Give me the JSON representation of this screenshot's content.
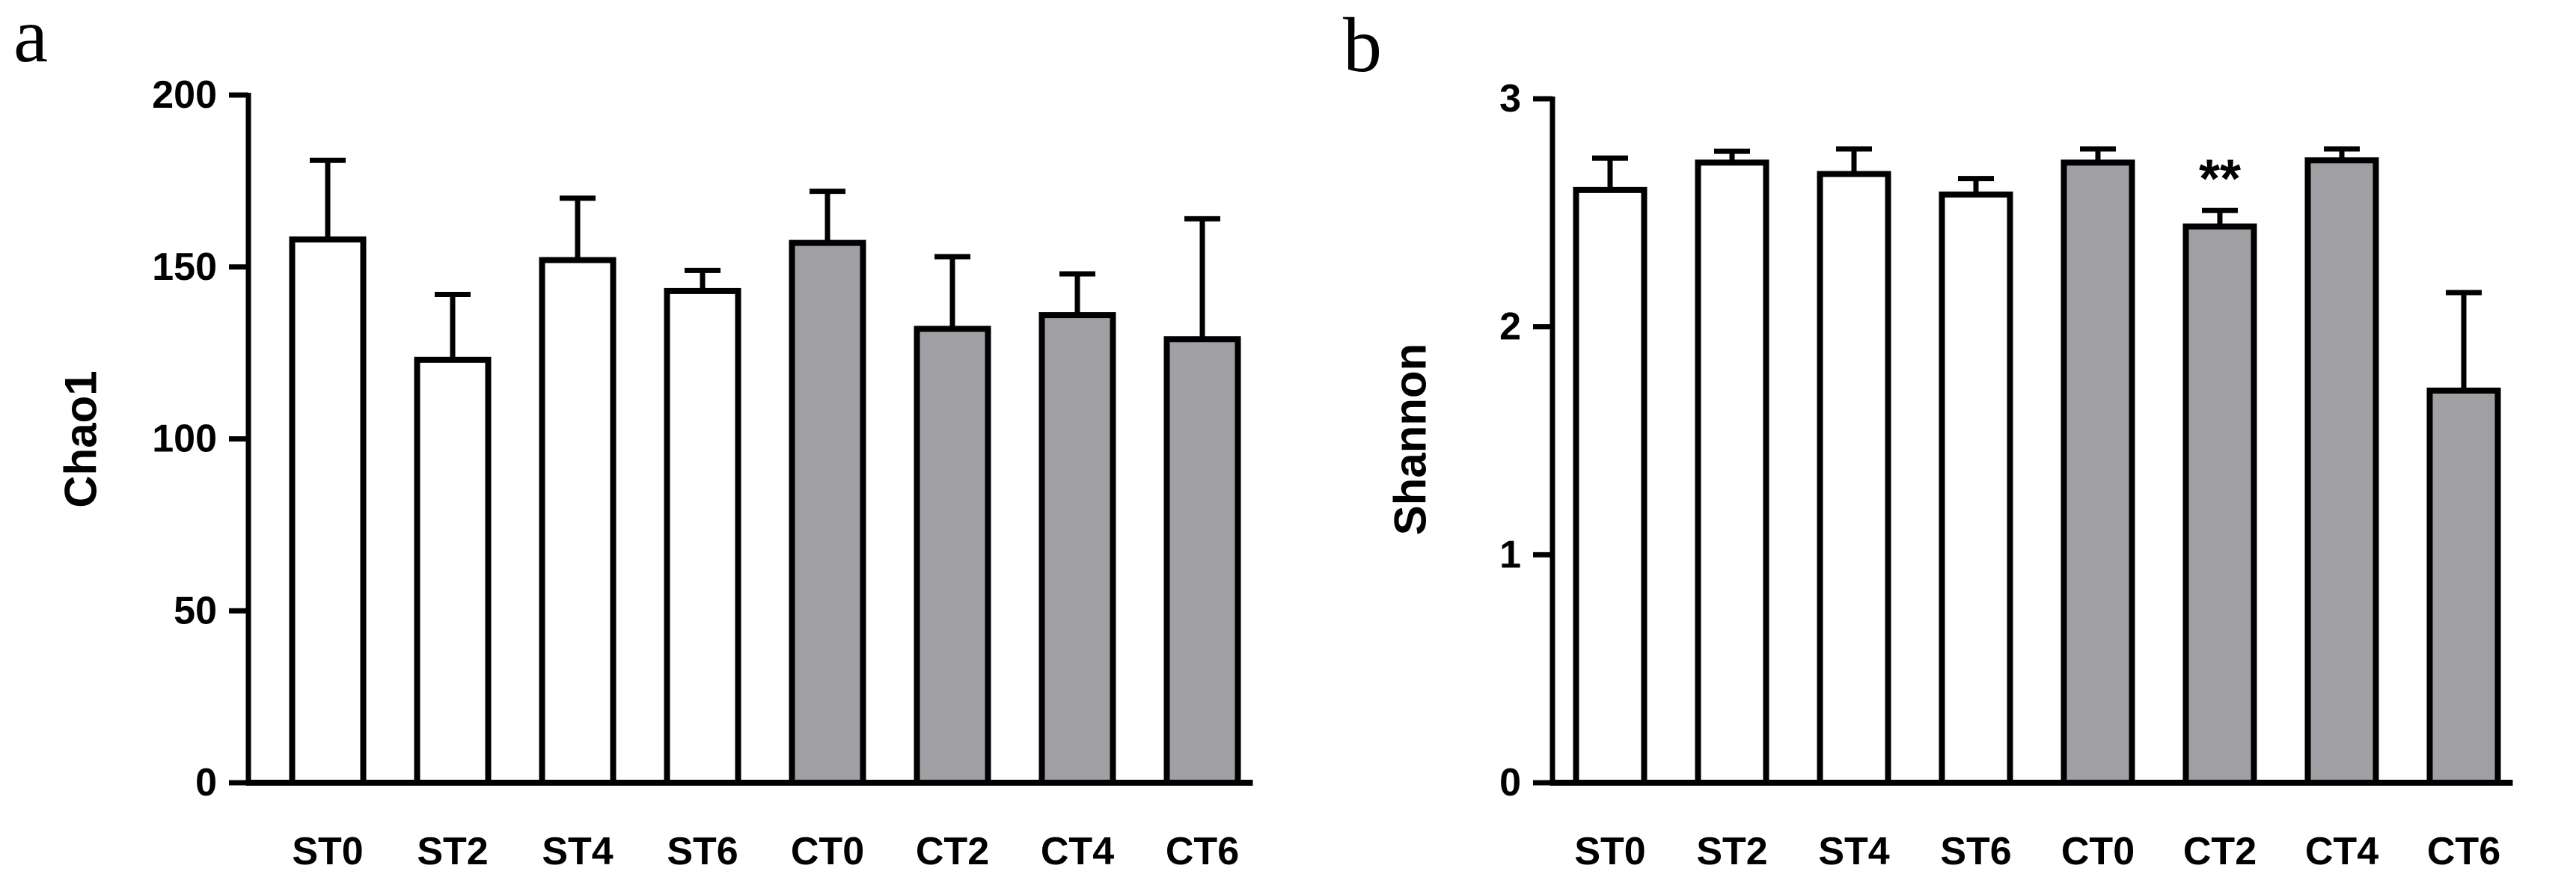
{
  "colors": {
    "open_fill": "#ffffff",
    "filled_fill": "#a09fa4",
    "stroke": "#000000"
  },
  "chart_data": [
    {
      "panel": "a",
      "type": "bar",
      "title": "",
      "xlabel": "",
      "ylabel": "Chao1",
      "ylim": [
        0,
        200
      ],
      "yticks": [
        0,
        50,
        100,
        150,
        200
      ],
      "categories": [
        "ST0",
        "ST2",
        "ST4",
        "ST6",
        "CT0",
        "CT2",
        "CT4",
        "CT6"
      ],
      "groups": [
        "open",
        "open",
        "open",
        "open",
        "filled",
        "filled",
        "filled",
        "filled"
      ],
      "values": [
        158,
        123,
        152,
        143,
        157,
        132,
        136,
        129
      ],
      "errors": [
        23,
        19,
        18,
        6,
        15,
        21,
        12,
        35
      ],
      "annotations": []
    },
    {
      "panel": "b",
      "type": "bar",
      "title": "",
      "xlabel": "",
      "ylabel": "Shannon",
      "ylim": [
        0,
        3
      ],
      "yticks": [
        0,
        1,
        2,
        3
      ],
      "categories": [
        "ST0",
        "ST2",
        "ST4",
        "ST6",
        "CT0",
        "CT2",
        "CT4",
        "CT6"
      ],
      "groups": [
        "open",
        "open",
        "open",
        "open",
        "filled",
        "filled",
        "filled",
        "filled"
      ],
      "values": [
        2.6,
        2.72,
        2.67,
        2.58,
        2.72,
        2.44,
        2.73,
        1.72
      ],
      "errors": [
        0.14,
        0.05,
        0.11,
        0.07,
        0.06,
        0.07,
        0.05,
        0.43
      ],
      "annotations": [
        {
          "category": "CT2",
          "text": "**"
        }
      ]
    }
  ]
}
